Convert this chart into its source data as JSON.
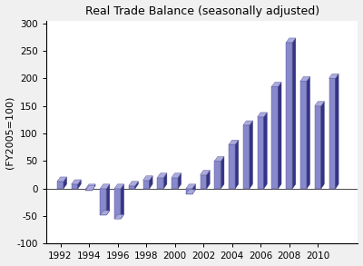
{
  "title": "Real Trade Balance (seasonally adjusted)",
  "ylabel": "(FY2005=100)",
  "years": [
    1992,
    1993,
    1994,
    1995,
    1996,
    1997,
    1998,
    1999,
    2000,
    2001,
    2002,
    2003,
    2004,
    2005,
    2006,
    2007,
    2008,
    2009,
    2010,
    2011
  ],
  "values": [
    13,
    8,
    -3,
    -48,
    -55,
    5,
    15,
    20,
    20,
    -10,
    25,
    50,
    80,
    115,
    130,
    185,
    265,
    195,
    150,
    200
  ],
  "bar_face_color": "#8888cc",
  "bar_side_color": "#333388",
  "bar_top_color": "#aaaadd",
  "ylim": [
    -100,
    300
  ],
  "bg_color": "#ffffff",
  "fig_bg_color": "#f0f0f0",
  "yticks": [
    -100,
    -50,
    0,
    50,
    100,
    150,
    200,
    250,
    300
  ],
  "xticks": [
    1992,
    1994,
    1996,
    1998,
    2000,
    2002,
    2004,
    2006,
    2008,
    2010
  ]
}
